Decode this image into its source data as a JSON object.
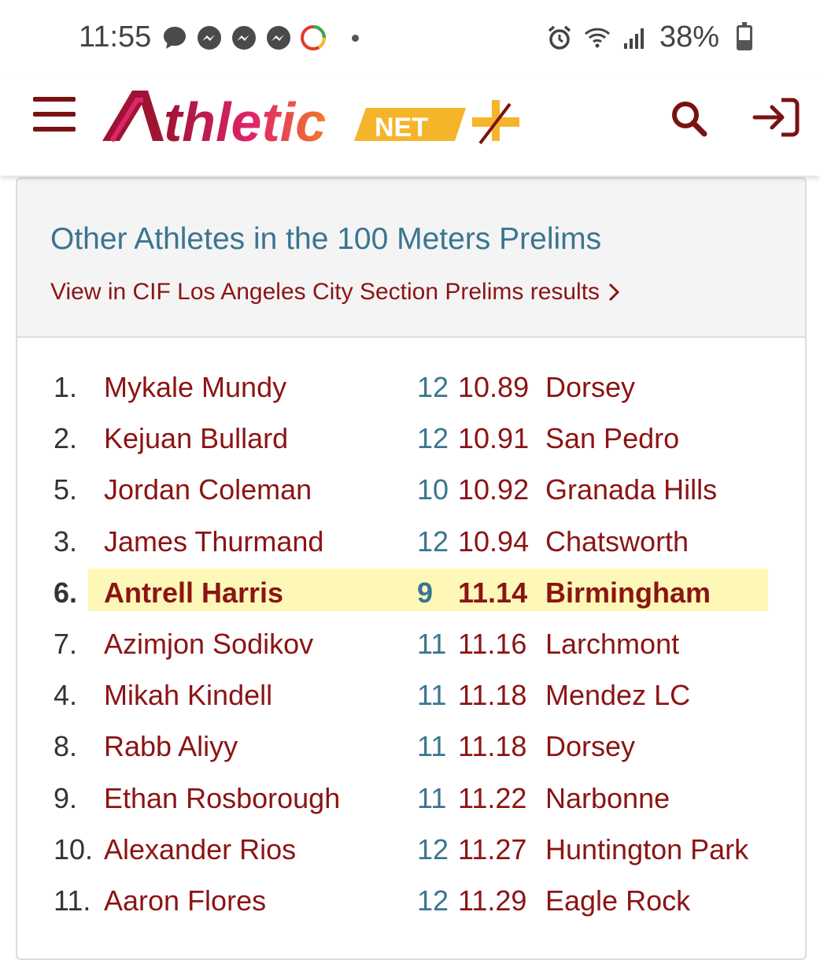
{
  "status_bar": {
    "time": "11:55",
    "battery": "38%",
    "icons": [
      "chat-icon",
      "messenger-icon",
      "messenger-icon",
      "messenger-icon",
      "fico-icon",
      "dot-icon",
      "alarm-icon",
      "wifi-icon",
      "signal-icon",
      "battery-icon"
    ]
  },
  "header": {
    "logo_main": "thletic",
    "logo_badge": "NET",
    "colors": {
      "brand": "#8b1414",
      "accent": "#f5b52a",
      "pink": "#e0246b"
    }
  },
  "card": {
    "title": "Other Athletes in the 100 Meters Prelims",
    "link": "View in CIF Los Angeles City Section Prelims results",
    "rows": [
      {
        "place": "1.",
        "name": "Mykale Mundy",
        "grade": "12",
        "mark": "10.89",
        "school": "Dorsey"
      },
      {
        "place": "2.",
        "name": "Kejuan Bullard",
        "grade": "12",
        "mark": "10.91",
        "school": "San Pedro"
      },
      {
        "place": "5.",
        "name": "Jordan Coleman",
        "grade": "10",
        "mark": "10.92",
        "school": "Granada Hills"
      },
      {
        "place": "3.",
        "name": "James Thurmand",
        "grade": "12",
        "mark": "10.94",
        "school": "Chatsworth"
      },
      {
        "place": "6.",
        "name": "Antrell Harris",
        "grade": "9",
        "mark": "11.14",
        "school": "Birmingham",
        "highlight": true
      },
      {
        "place": "7.",
        "name": "Azimjon Sodikov",
        "grade": "11",
        "mark": "11.16",
        "school": "Larchmont"
      },
      {
        "place": "4.",
        "name": "Mikah Kindell",
        "grade": "11",
        "mark": "11.18",
        "school": "Mendez LC"
      },
      {
        "place": "8.",
        "name": "Rabb Aliyy",
        "grade": "11",
        "mark": "11.18",
        "school": "Dorsey"
      },
      {
        "place": "9.",
        "name": "Ethan Rosborough",
        "grade": "11",
        "mark": "11.22",
        "school": "Narbonne"
      },
      {
        "place": "10.",
        "name": "Alexander Rios",
        "grade": "12",
        "mark": "11.27",
        "school": "Huntington Park"
      },
      {
        "place": "11.",
        "name": "Aaron Flores",
        "grade": "12",
        "mark": "11.29",
        "school": "Eagle Rock"
      }
    ]
  }
}
